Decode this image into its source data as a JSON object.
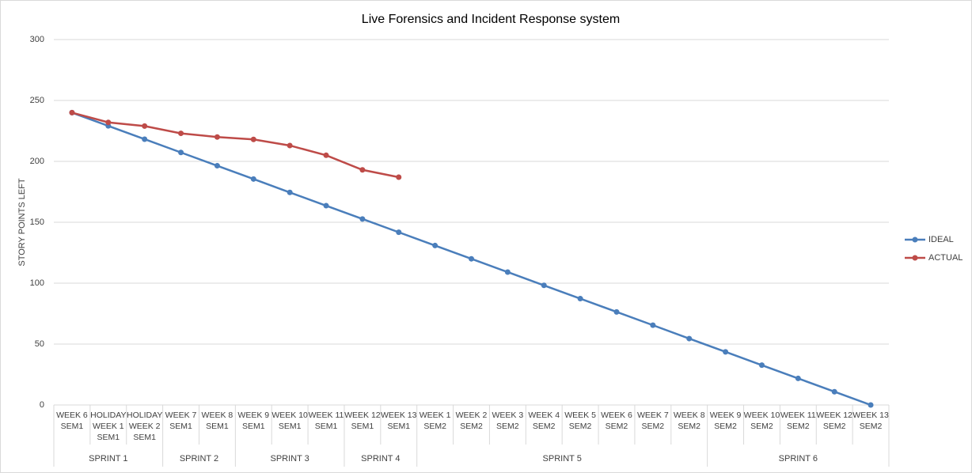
{
  "chart_data": {
    "type": "line",
    "title": "Live Forensics and Incident Response system",
    "y_label": "STORY POINTS LEFT",
    "categories": [
      "WEEK 6 SEM1",
      "HOLIDAY WEEK 1 SEM1",
      "HOLIDAY WEEK 2 SEM1",
      "WEEK 7 SEM1",
      "WEEK 8 SEM1",
      "WEEK 9 SEM1",
      "WEEK 10 SEM1",
      "WEEK 11 SEM1",
      "WEEK 12 SEM1",
      "WEEK 13 SEM1",
      "WEEK 1 SEM2",
      "WEEK 2 SEM2",
      "WEEK 3 SEM2",
      "WEEK 4 SEM2",
      "WEEK 5 SEM2",
      "WEEK 6 SEM2",
      "WEEK 7 SEM2",
      "WEEK 8 SEM2",
      "WEEK 9 SEM2",
      "WEEK 10 SEM2",
      "WEEK 11 SEM2",
      "WEEK 12 SEM2",
      "WEEK 13 SEM2"
    ],
    "groups": [
      {
        "label": "SPRINT 1",
        "span": 3
      },
      {
        "label": "SPRINT 2",
        "span": 2
      },
      {
        "label": "SPRINT 3",
        "span": 3
      },
      {
        "label": "SPRINT 4",
        "span": 2
      },
      {
        "label": "SPRINT 5",
        "span": 8
      },
      {
        "label": "SPRINT 6",
        "span": 5
      }
    ],
    "series": [
      {
        "name": "IDEAL",
        "color": "#4a7ebb",
        "values": [
          240,
          229.1,
          218.2,
          207.3,
          196.4,
          185.5,
          174.5,
          163.6,
          152.7,
          141.8,
          130.9,
          120,
          109.1,
          98.2,
          87.3,
          76.4,
          65.5,
          54.5,
          43.6,
          32.7,
          21.8,
          10.9,
          0
        ]
      },
      {
        "name": "ACTUAL",
        "color": "#be4b48",
        "values": [
          240,
          232,
          229,
          223,
          220,
          218,
          213,
          205,
          193,
          187,
          null,
          null,
          null,
          null,
          null,
          null,
          null,
          null,
          null,
          null,
          null,
          null,
          null
        ]
      }
    ],
    "ylim": [
      0,
      300
    ],
    "yticks": [
      0,
      50,
      100,
      150,
      200,
      250,
      300
    ],
    "grid": true,
    "legend": "right"
  }
}
